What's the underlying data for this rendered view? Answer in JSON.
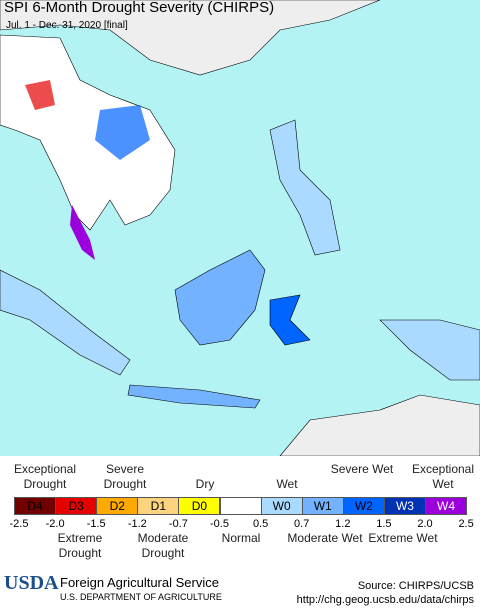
{
  "header": {
    "title": "SPI 6-Month Drought Severity (CHIRPS)",
    "subtitle": "Jul. 1 - Dec. 31, 2020 [final]"
  },
  "legend": {
    "top_labels": [
      "Exceptional Drought",
      "Severe Drought",
      "Dry",
      "Wet",
      "Severe Wet",
      "Exceptional Wet"
    ],
    "boxes": [
      {
        "code": "D4",
        "color": "#730000"
      },
      {
        "code": "D3",
        "color": "#e60000"
      },
      {
        "code": "D2",
        "color": "#ffaa00"
      },
      {
        "code": "D1",
        "color": "#fcd37f"
      },
      {
        "code": "D0",
        "color": "#ffff00"
      },
      {
        "code": null,
        "color": "#ffffff"
      },
      {
        "code": "W0",
        "color": "#aadaff"
      },
      {
        "code": "W1",
        "color": "#73b2ff"
      },
      {
        "code": "W2",
        "color": "#0064ff"
      },
      {
        "code": "W3",
        "color": "#0032b4"
      },
      {
        "code": "W4",
        "color": "#9b00dc"
      }
    ],
    "ticks": [
      "-2.5",
      "-2.0",
      "-1.5",
      "-1.2",
      "-0.7",
      "-0.5",
      "0.5",
      "0.7",
      "1.2",
      "1.5",
      "2.0",
      "2.5"
    ],
    "bottom_labels": [
      "Extreme Drought",
      "Moderate Drought",
      "Normal",
      "Moderate Wet",
      "Extreme Wet"
    ]
  },
  "footer": {
    "logo": "USDA",
    "agency": "Foreign Agricultural Service",
    "department": "U.S. DEPARTMENT OF AGRICULTURE",
    "source": "Source: CHIRPS/UCSB",
    "url": "http://chg.geog.ucsb.edu/data/chirps"
  }
}
